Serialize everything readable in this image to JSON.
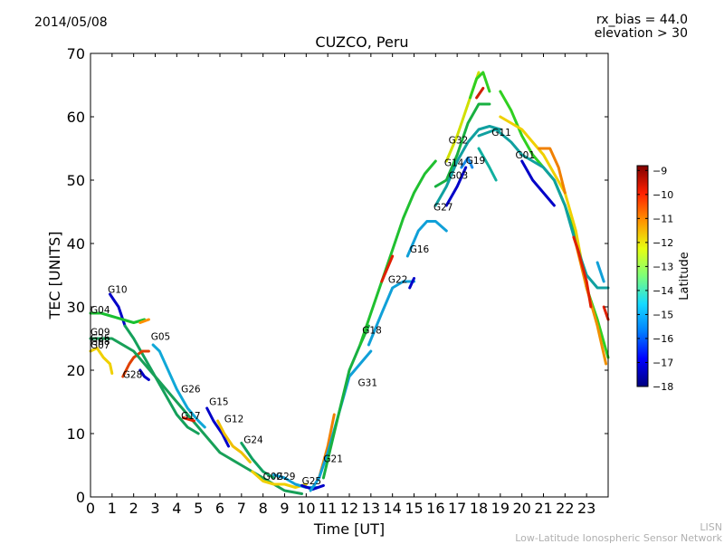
{
  "header": {
    "date": "2014/05/08",
    "note_bias": "rx_bias = 44.0",
    "note_elev": "elevation > 30"
  },
  "footer": {
    "credit_1": "LISN",
    "credit_2": "Low-Latitude Ionospheric Sensor Network"
  },
  "chart_data": {
    "type": "line",
    "title": "CUZCO, Peru",
    "xlabel": "Time [UT]",
    "ylabel": "TEC [UNITS]",
    "xlim": [
      0,
      24
    ],
    "ylim": [
      0,
      70
    ],
    "xticks": [
      0,
      1,
      2,
      3,
      4,
      5,
      6,
      7,
      8,
      9,
      10,
      11,
      12,
      13,
      14,
      15,
      16,
      17,
      18,
      19,
      20,
      21,
      22,
      23
    ],
    "yticks": [
      0,
      10,
      20,
      30,
      40,
      50,
      60,
      70
    ],
    "grid": false,
    "colorbar": {
      "label": "Latitude",
      "min": -18,
      "max": -8.8,
      "ticks": [
        -9,
        -10,
        -11,
        -12,
        -13,
        -14,
        -15,
        -16,
        -17,
        -18
      ],
      "colormap": [
        "#00007f",
        "#0000ff",
        "#0080ff",
        "#15dbff",
        "#7dff7a",
        "#e7ff0f",
        "#ff9400",
        "#ff2000",
        "#7f0000"
      ]
    },
    "series": [
      {
        "name": "G10",
        "color": "#0000c8",
        "x": [
          0.9,
          1.1,
          1.3,
          1.6
        ],
        "y": [
          32,
          31,
          30,
          27
        ]
      },
      {
        "name": "G10",
        "color": "#14a05a",
        "x": [
          1.6,
          2.0,
          2.5,
          3.0,
          3.5,
          4.0,
          4.5,
          5.0
        ],
        "y": [
          27,
          25,
          22,
          19,
          16,
          13,
          11,
          10
        ]
      },
      {
        "name": "G04",
        "color": "#18c030",
        "x": [
          0.0,
          0.5,
          1.0,
          1.5,
          2.0,
          2.5
        ],
        "y": [
          29,
          29,
          28.5,
          28,
          27.5,
          28
        ]
      },
      {
        "name": "G04",
        "color": "#ff9000",
        "x": [
          2.3,
          2.7
        ],
        "y": [
          27.5,
          28
        ]
      },
      {
        "name": "G28",
        "color": "#e04000",
        "x": [
          1.5,
          1.8,
          2.0,
          2.4,
          2.7
        ],
        "y": [
          19,
          21,
          22,
          23,
          23
        ]
      },
      {
        "name": "G28",
        "color": "#0000c8",
        "x": [
          2.3,
          2.5,
          2.7
        ],
        "y": [
          20,
          19,
          18.5
        ]
      },
      {
        "name": "G05",
        "color": "#10a8d8",
        "x": [
          2.9,
          3.2,
          3.6,
          4.0,
          4.5,
          5.0,
          5.3
        ],
        "y": [
          24,
          23,
          20,
          17,
          14,
          12,
          11
        ]
      },
      {
        "name": "G26",
        "color": "#18a058",
        "x": [
          0.0,
          1.0,
          2.0,
          3.0,
          4.0,
          5.0,
          5.5,
          6.0,
          7.0,
          8.0,
          9.0,
          9.8
        ],
        "y": [
          25,
          25,
          23,
          19,
          15,
          11,
          9,
          7,
          5,
          3,
          1,
          0.5
        ]
      },
      {
        "name": "G17",
        "color": "#f0d000",
        "x": [
          0.0,
          0.3,
          0.6,
          0.9,
          1.0
        ],
        "y": [
          23,
          23.5,
          22,
          21,
          19.5
        ]
      },
      {
        "name": "G17",
        "color": "#e02000",
        "x": [
          4.3,
          4.8
        ],
        "y": [
          12.5,
          12
        ]
      },
      {
        "name": "G15",
        "color": "#0000c8",
        "x": [
          5.4,
          5.7,
          6.1,
          6.4
        ],
        "y": [
          14,
          12,
          10,
          8
        ]
      },
      {
        "name": "G12",
        "color": "#f0c000",
        "x": [
          5.9,
          6.2,
          6.6,
          7.0,
          7.4
        ],
        "y": [
          12,
          10,
          8,
          7,
          5.5
        ]
      },
      {
        "name": "G24",
        "color": "#10a060",
        "x": [
          7.0,
          7.5,
          8.0,
          8.5
        ],
        "y": [
          8.5,
          6,
          4,
          3
        ]
      },
      {
        "name": "G02",
        "color": "#f0d000",
        "x": [
          7.5,
          8.0,
          8.5,
          9.0,
          9.5,
          10.0
        ],
        "y": [
          4,
          2.5,
          2,
          2,
          1.5,
          2
        ]
      },
      {
        "name": "G29",
        "color": "#10a0d8",
        "x": [
          8.5,
          9.0,
          9.5,
          10.0,
          10.5
        ],
        "y": [
          3.5,
          3,
          2,
          1.5,
          1.5
        ]
      },
      {
        "name": "G25",
        "color": "#0000c8",
        "x": [
          9.8,
          10.3,
          10.8
        ],
        "y": [
          1.8,
          1.2,
          1.8
        ]
      },
      {
        "name": "G21",
        "color": "#f08000",
        "x": [
          10.6,
          11.0,
          11.3
        ],
        "y": [
          3,
          8,
          13
        ]
      },
      {
        "name": "G31",
        "color": "#10a0d8",
        "x": [
          10.2,
          10.6,
          11.0,
          11.5,
          12.0,
          12.5,
          13.0
        ],
        "y": [
          1,
          3,
          7,
          13,
          19,
          21,
          23
        ]
      },
      {
        "name": "G18",
        "color": "#18b040",
        "x": [
          10.8,
          11.5,
          12.0,
          12.5,
          12.9
        ],
        "y": [
          3,
          13,
          20,
          24,
          27
        ]
      },
      {
        "name": "G22",
        "color": "#20c030",
        "x": [
          12.5,
          13.0,
          13.5,
          14.0,
          14.5,
          15.0,
          15.5,
          16.0
        ],
        "y": [
          24,
          29,
          34,
          39,
          44,
          48,
          51,
          53
        ]
      },
      {
        "name": "G22",
        "color": "#e02000",
        "x": [
          13.5,
          14.0
        ],
        "y": [
          34,
          38
        ]
      },
      {
        "name": "G16",
        "color": "#10a0d8",
        "x": [
          12.9,
          13.5,
          14.0,
          14.5,
          15.0
        ],
        "y": [
          24,
          29,
          33,
          34,
          34
        ]
      },
      {
        "name": "G16",
        "color": "#0000c8",
        "x": [
          14.8,
          15.0
        ],
        "y": [
          33,
          34.5
        ]
      },
      {
        "name": "G27",
        "color": "#10a0d8",
        "x": [
          14.7,
          15.2,
          15.6,
          16.0,
          16.5
        ],
        "y": [
          38,
          42,
          43.5,
          43.5,
          42
        ]
      },
      {
        "name": "G14",
        "color": "#18b040",
        "x": [
          16.0,
          16.5,
          17.0,
          17.5,
          18.0,
          18.5
        ],
        "y": [
          49,
          50,
          54,
          59,
          62,
          62
        ]
      },
      {
        "name": "G03",
        "color": "#10a0a0",
        "x": [
          16.0,
          16.5,
          17.0,
          17.5,
          18.0,
          18.5,
          19.0
        ],
        "y": [
          46,
          49,
          53,
          56,
          58,
          58.5,
          58
        ]
      },
      {
        "name": "G03",
        "color": "#0000c8",
        "x": [
          16.5,
          17.0,
          17.4
        ],
        "y": [
          46,
          49,
          52
        ]
      },
      {
        "name": "G19",
        "color": "#1888e8",
        "x": [
          17.2,
          17.5,
          17.7
        ],
        "y": [
          52,
          53.5,
          52
        ]
      },
      {
        "name": "G32",
        "color": "#d0e000",
        "x": [
          16.5,
          17.0,
          17.5,
          17.8,
          18.0
        ],
        "y": [
          53,
          57,
          62,
          65,
          67
        ]
      },
      {
        "name": "G32",
        "color": "#30d020",
        "x": [
          17.6,
          17.9,
          18.2,
          18.5
        ],
        "y": [
          63,
          66,
          67,
          64
        ]
      },
      {
        "name": "G32",
        "color": "#d02000",
        "x": [
          17.9,
          18.2
        ],
        "y": [
          63,
          64.5
        ]
      },
      {
        "name": "G11",
        "color": "#10b0a0",
        "x": [
          18.0,
          18.5,
          18.8
        ],
        "y": [
          55,
          52,
          50
        ]
      },
      {
        "name": "G11",
        "color": "#30d020",
        "x": [
          19.0,
          19.5,
          20.0,
          20.5,
          21.0,
          21.5,
          22.0,
          22.5,
          23.0,
          23.5,
          24.0
        ],
        "y": [
          64,
          61,
          57,
          54,
          52,
          50,
          46,
          41,
          33,
          28,
          22
        ]
      },
      {
        "name": "G01",
        "color": "#f0d000",
        "x": [
          19.0,
          19.5,
          20.0,
          20.5,
          21.0,
          21.5,
          22.0,
          22.5,
          23.0
        ],
        "y": [
          60,
          59,
          58,
          56,
          54,
          51,
          48,
          42,
          33
        ]
      },
      {
        "name": "G01",
        "color": "#0000c8",
        "x": [
          20.0,
          20.5,
          21.0,
          21.5
        ],
        "y": [
          53,
          50,
          48,
          46
        ]
      },
      {
        "name": "G01",
        "color": "#f08000",
        "x": [
          20.8,
          21.3,
          21.7,
          22.0
        ],
        "y": [
          55,
          55,
          52,
          48
        ]
      },
      {
        "name": "G09",
        "color": "#10a0a0",
        "x": [
          18.0,
          18.8,
          19.5,
          20.0,
          20.5,
          21.0,
          21.5,
          22.0,
          22.5,
          23.0,
          23.5,
          24.0
        ],
        "y": [
          57,
          58,
          56,
          54,
          53,
          52,
          50,
          46,
          40,
          35,
          33,
          33
        ]
      },
      {
        "name": "G09",
        "color": "#f09000",
        "x": [
          22.5,
          23.0,
          23.5,
          23.9
        ],
        "y": [
          40,
          33,
          27,
          21
        ]
      },
      {
        "name": "G09",
        "color": "#e02000",
        "x": [
          22.4,
          22.6,
          23.0,
          23.2
        ],
        "y": [
          41,
          39,
          34,
          30
        ]
      },
      {
        "name": "G09",
        "color": "#e02000",
        "x": [
          23.8,
          24.0
        ],
        "y": [
          30,
          28
        ]
      },
      {
        "name": "G09",
        "color": "#10a0d8",
        "x": [
          23.5,
          23.8
        ],
        "y": [
          37,
          34
        ]
      }
    ],
    "annotations": [
      {
        "text": "G10",
        "x": 0.8,
        "y": 32.2
      },
      {
        "text": "G04",
        "x": 0.0,
        "y": 29.0
      },
      {
        "text": "G09",
        "x": 0.0,
        "y": 25.5
      },
      {
        "text": "G26",
        "x": 0.0,
        "y": 24.6
      },
      {
        "text": "G08",
        "x": 0.0,
        "y": 24.0
      },
      {
        "text": "G07",
        "x": 0.0,
        "y": 23.4
      },
      {
        "text": "G05",
        "x": 2.8,
        "y": 24.8
      },
      {
        "text": "G28",
        "x": 1.5,
        "y": 18.8
      },
      {
        "text": "G26",
        "x": 4.2,
        "y": 16.5
      },
      {
        "text": "G15",
        "x": 5.5,
        "y": 14.5
      },
      {
        "text": "G17",
        "x": 4.2,
        "y": 12.3
      },
      {
        "text": "G12",
        "x": 6.2,
        "y": 11.8
      },
      {
        "text": "G24",
        "x": 7.1,
        "y": 8.5
      },
      {
        "text": "G02",
        "x": 8.0,
        "y": 2.7
      },
      {
        "text": "G29",
        "x": 8.6,
        "y": 2.7
      },
      {
        "text": "G25",
        "x": 9.8,
        "y": 2.0
      },
      {
        "text": "G21",
        "x": 10.8,
        "y": 5.5
      },
      {
        "text": "G31",
        "x": 12.4,
        "y": 17.5
      },
      {
        "text": "G18",
        "x": 12.6,
        "y": 25.8
      },
      {
        "text": "G22",
        "x": 13.8,
        "y": 33.8
      },
      {
        "text": "G16",
        "x": 14.8,
        "y": 38.6
      },
      {
        "text": "G27",
        "x": 15.9,
        "y": 45.2
      },
      {
        "text": "G32",
        "x": 16.6,
        "y": 55.8
      },
      {
        "text": "G14",
        "x": 16.4,
        "y": 52.2
      },
      {
        "text": "G19",
        "x": 17.4,
        "y": 52.6
      },
      {
        "text": "G03",
        "x": 16.6,
        "y": 50.2
      },
      {
        "text": "G11",
        "x": 18.6,
        "y": 57.0
      },
      {
        "text": "G01",
        "x": 19.7,
        "y": 53.4
      }
    ]
  }
}
